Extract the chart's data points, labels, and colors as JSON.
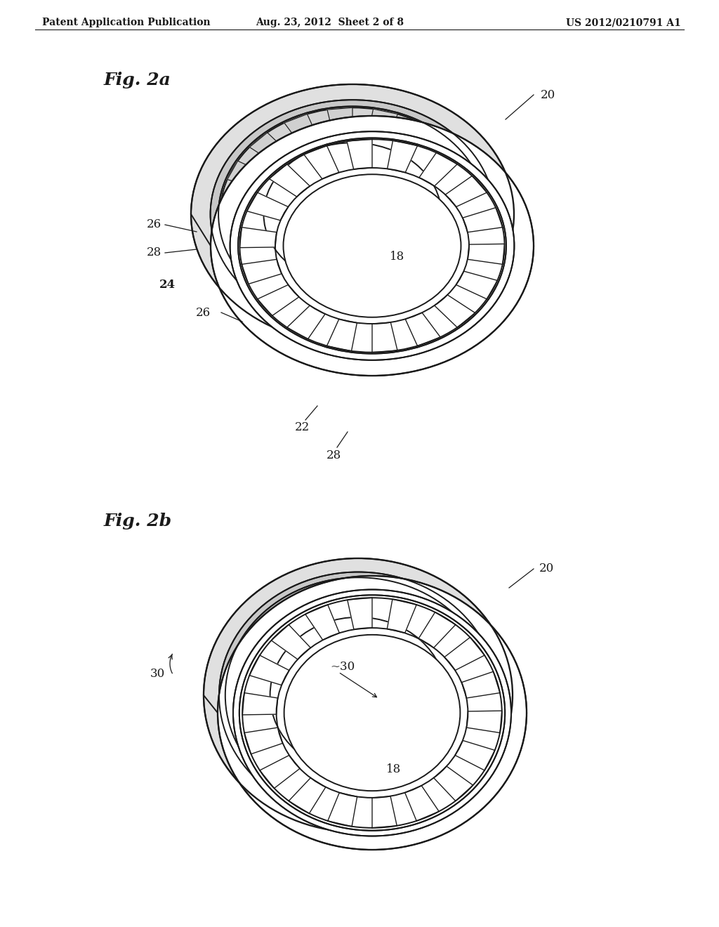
{
  "bg_color": "#ffffff",
  "line_color": "#1a1a1a",
  "header_left": "Patent Application Publication",
  "header_mid": "Aug. 23, 2012  Sheet 2 of 8",
  "header_right": "US 2012/0210791 A1",
  "fig2a_label": "Fig. 2a",
  "fig2b_label": "Fig. 2b",
  "header_fontsize": 10,
  "label_fontsize": 12,
  "fig_label_fontsize": 18
}
